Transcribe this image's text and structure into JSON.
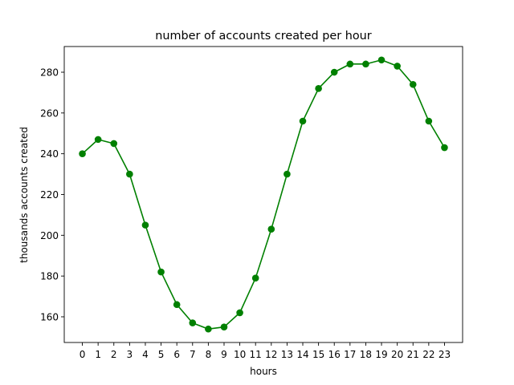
{
  "chart_data": {
    "type": "line",
    "title": "number of accounts created per hour",
    "xlabel": "hours",
    "ylabel": "thousands accounts created",
    "x": [
      0,
      1,
      2,
      3,
      4,
      5,
      6,
      7,
      8,
      9,
      10,
      11,
      12,
      13,
      14,
      15,
      16,
      17,
      18,
      19,
      20,
      21,
      22,
      23
    ],
    "series": [
      {
        "values": [
          240,
          247,
          245,
          230,
          205,
          182,
          166,
          157,
          154,
          155,
          162,
          179,
          203,
          230,
          256,
          272,
          280,
          284,
          284,
          286,
          283,
          274,
          256,
          243
        ],
        "color": "#008000",
        "marker": "circle"
      }
    ],
    "xticks": [
      "0",
      "1",
      "2",
      "3",
      "4",
      "5",
      "6",
      "7",
      "8",
      "9",
      "10",
      "11",
      "12",
      "13",
      "14",
      "15",
      "16",
      "17",
      "18",
      "19",
      "20",
      "21",
      "22",
      "23"
    ],
    "yticks": [
      160,
      180,
      200,
      220,
      240,
      260,
      280
    ],
    "xlim": [
      -1.15,
      24.15
    ],
    "ylim": [
      147.4,
      292.6
    ],
    "grid": false
  }
}
